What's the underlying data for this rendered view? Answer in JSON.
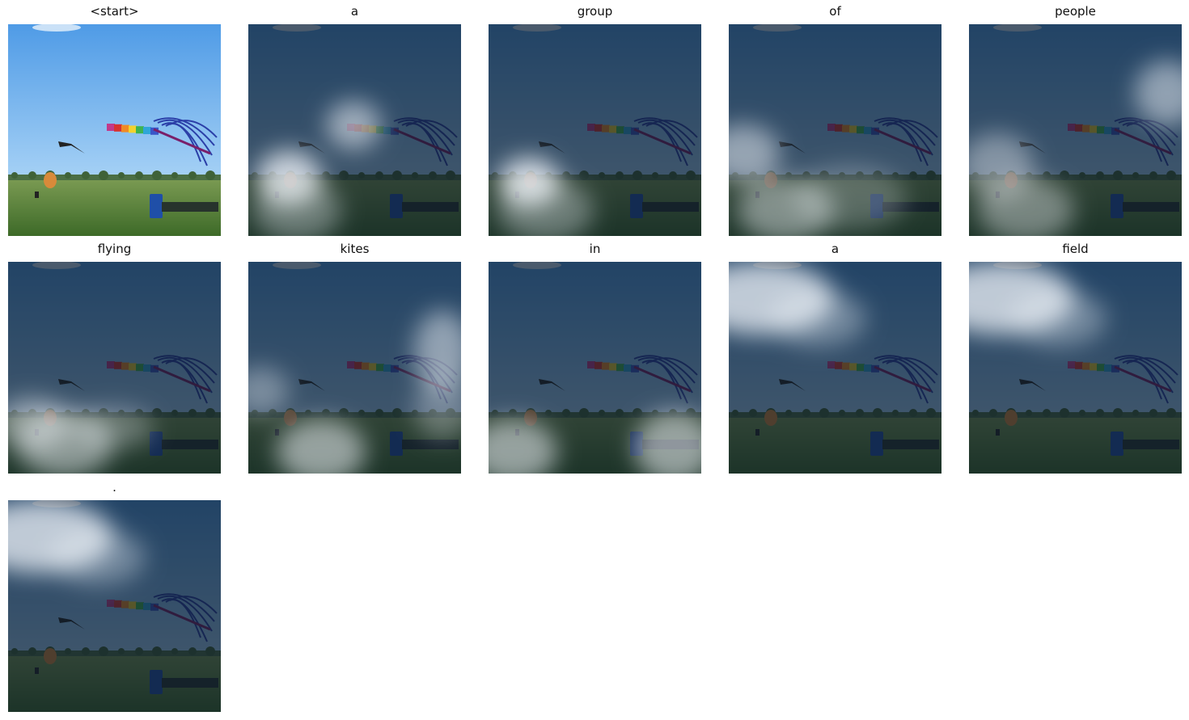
{
  "figure": {
    "panels": [
      {
        "word": "<start>",
        "attention": "none"
      },
      {
        "word": "a",
        "attention": "kite-center-and-bottom-left"
      },
      {
        "word": "group",
        "attention": "bottom-left"
      },
      {
        "word": "of",
        "attention": "left-and-bottom"
      },
      {
        "word": "people",
        "attention": "right-and-bottom-left"
      },
      {
        "word": "flying",
        "attention": "bottom"
      },
      {
        "word": "kites",
        "attention": "right-and-bottom"
      },
      {
        "word": "in",
        "attention": "bottom-corners"
      },
      {
        "word": "a",
        "attention": "top-left-sky"
      },
      {
        "word": "field",
        "attention": "top-left-sky"
      },
      {
        "word": ".",
        "attention": "top-left-sky"
      }
    ]
  }
}
